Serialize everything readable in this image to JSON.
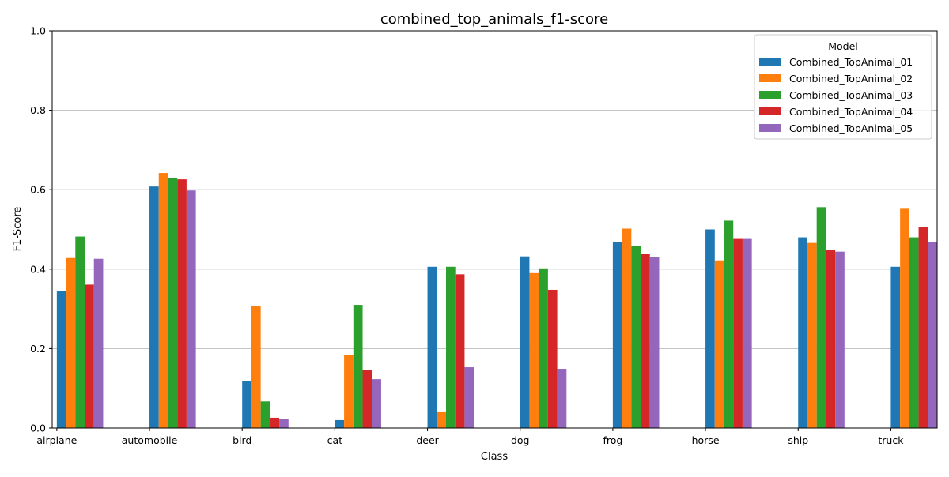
{
  "chart_data": {
    "type": "bar",
    "title": "combined_top_animals_f1-score",
    "xlabel": "Class",
    "ylabel": "F1-Score",
    "ylim": [
      0,
      1.0
    ],
    "yticks": [
      "0.0",
      "0.2",
      "0.4",
      "0.6",
      "0.8",
      "1.0"
    ],
    "grid": "y-axis major gridlines",
    "legend": {
      "title": "Model",
      "placement": "top-right"
    },
    "categories": [
      "airplane",
      "automobile",
      "bird",
      "cat",
      "deer",
      "dog",
      "frog",
      "horse",
      "ship",
      "truck"
    ],
    "series": [
      {
        "name": "Combined_TopAnimal_01",
        "color": "#1f77b4",
        "values": [
          0.345,
          0.608,
          0.118,
          0.02,
          0.406,
          0.432,
          0.468,
          0.5,
          0.48,
          0.406
        ]
      },
      {
        "name": "Combined_TopAnimal_02",
        "color": "#ff7f0e",
        "values": [
          0.428,
          0.642,
          0.307,
          0.184,
          0.04,
          0.39,
          0.502,
          0.422,
          0.466,
          0.552
        ]
      },
      {
        "name": "Combined_TopAnimal_03",
        "color": "#2ca02c",
        "values": [
          0.482,
          0.63,
          0.067,
          0.31,
          0.406,
          0.402,
          0.458,
          0.522,
          0.556,
          0.48
        ]
      },
      {
        "name": "Combined_TopAnimal_04",
        "color": "#d62728",
        "values": [
          0.361,
          0.626,
          0.026,
          0.147,
          0.387,
          0.348,
          0.438,
          0.476,
          0.448,
          0.506
        ]
      },
      {
        "name": "Combined_TopAnimal_05",
        "color": "#9467bd",
        "values": [
          0.426,
          0.598,
          0.022,
          0.123,
          0.153,
          0.149,
          0.43,
          0.476,
          0.444,
          0.468
        ]
      }
    ]
  }
}
